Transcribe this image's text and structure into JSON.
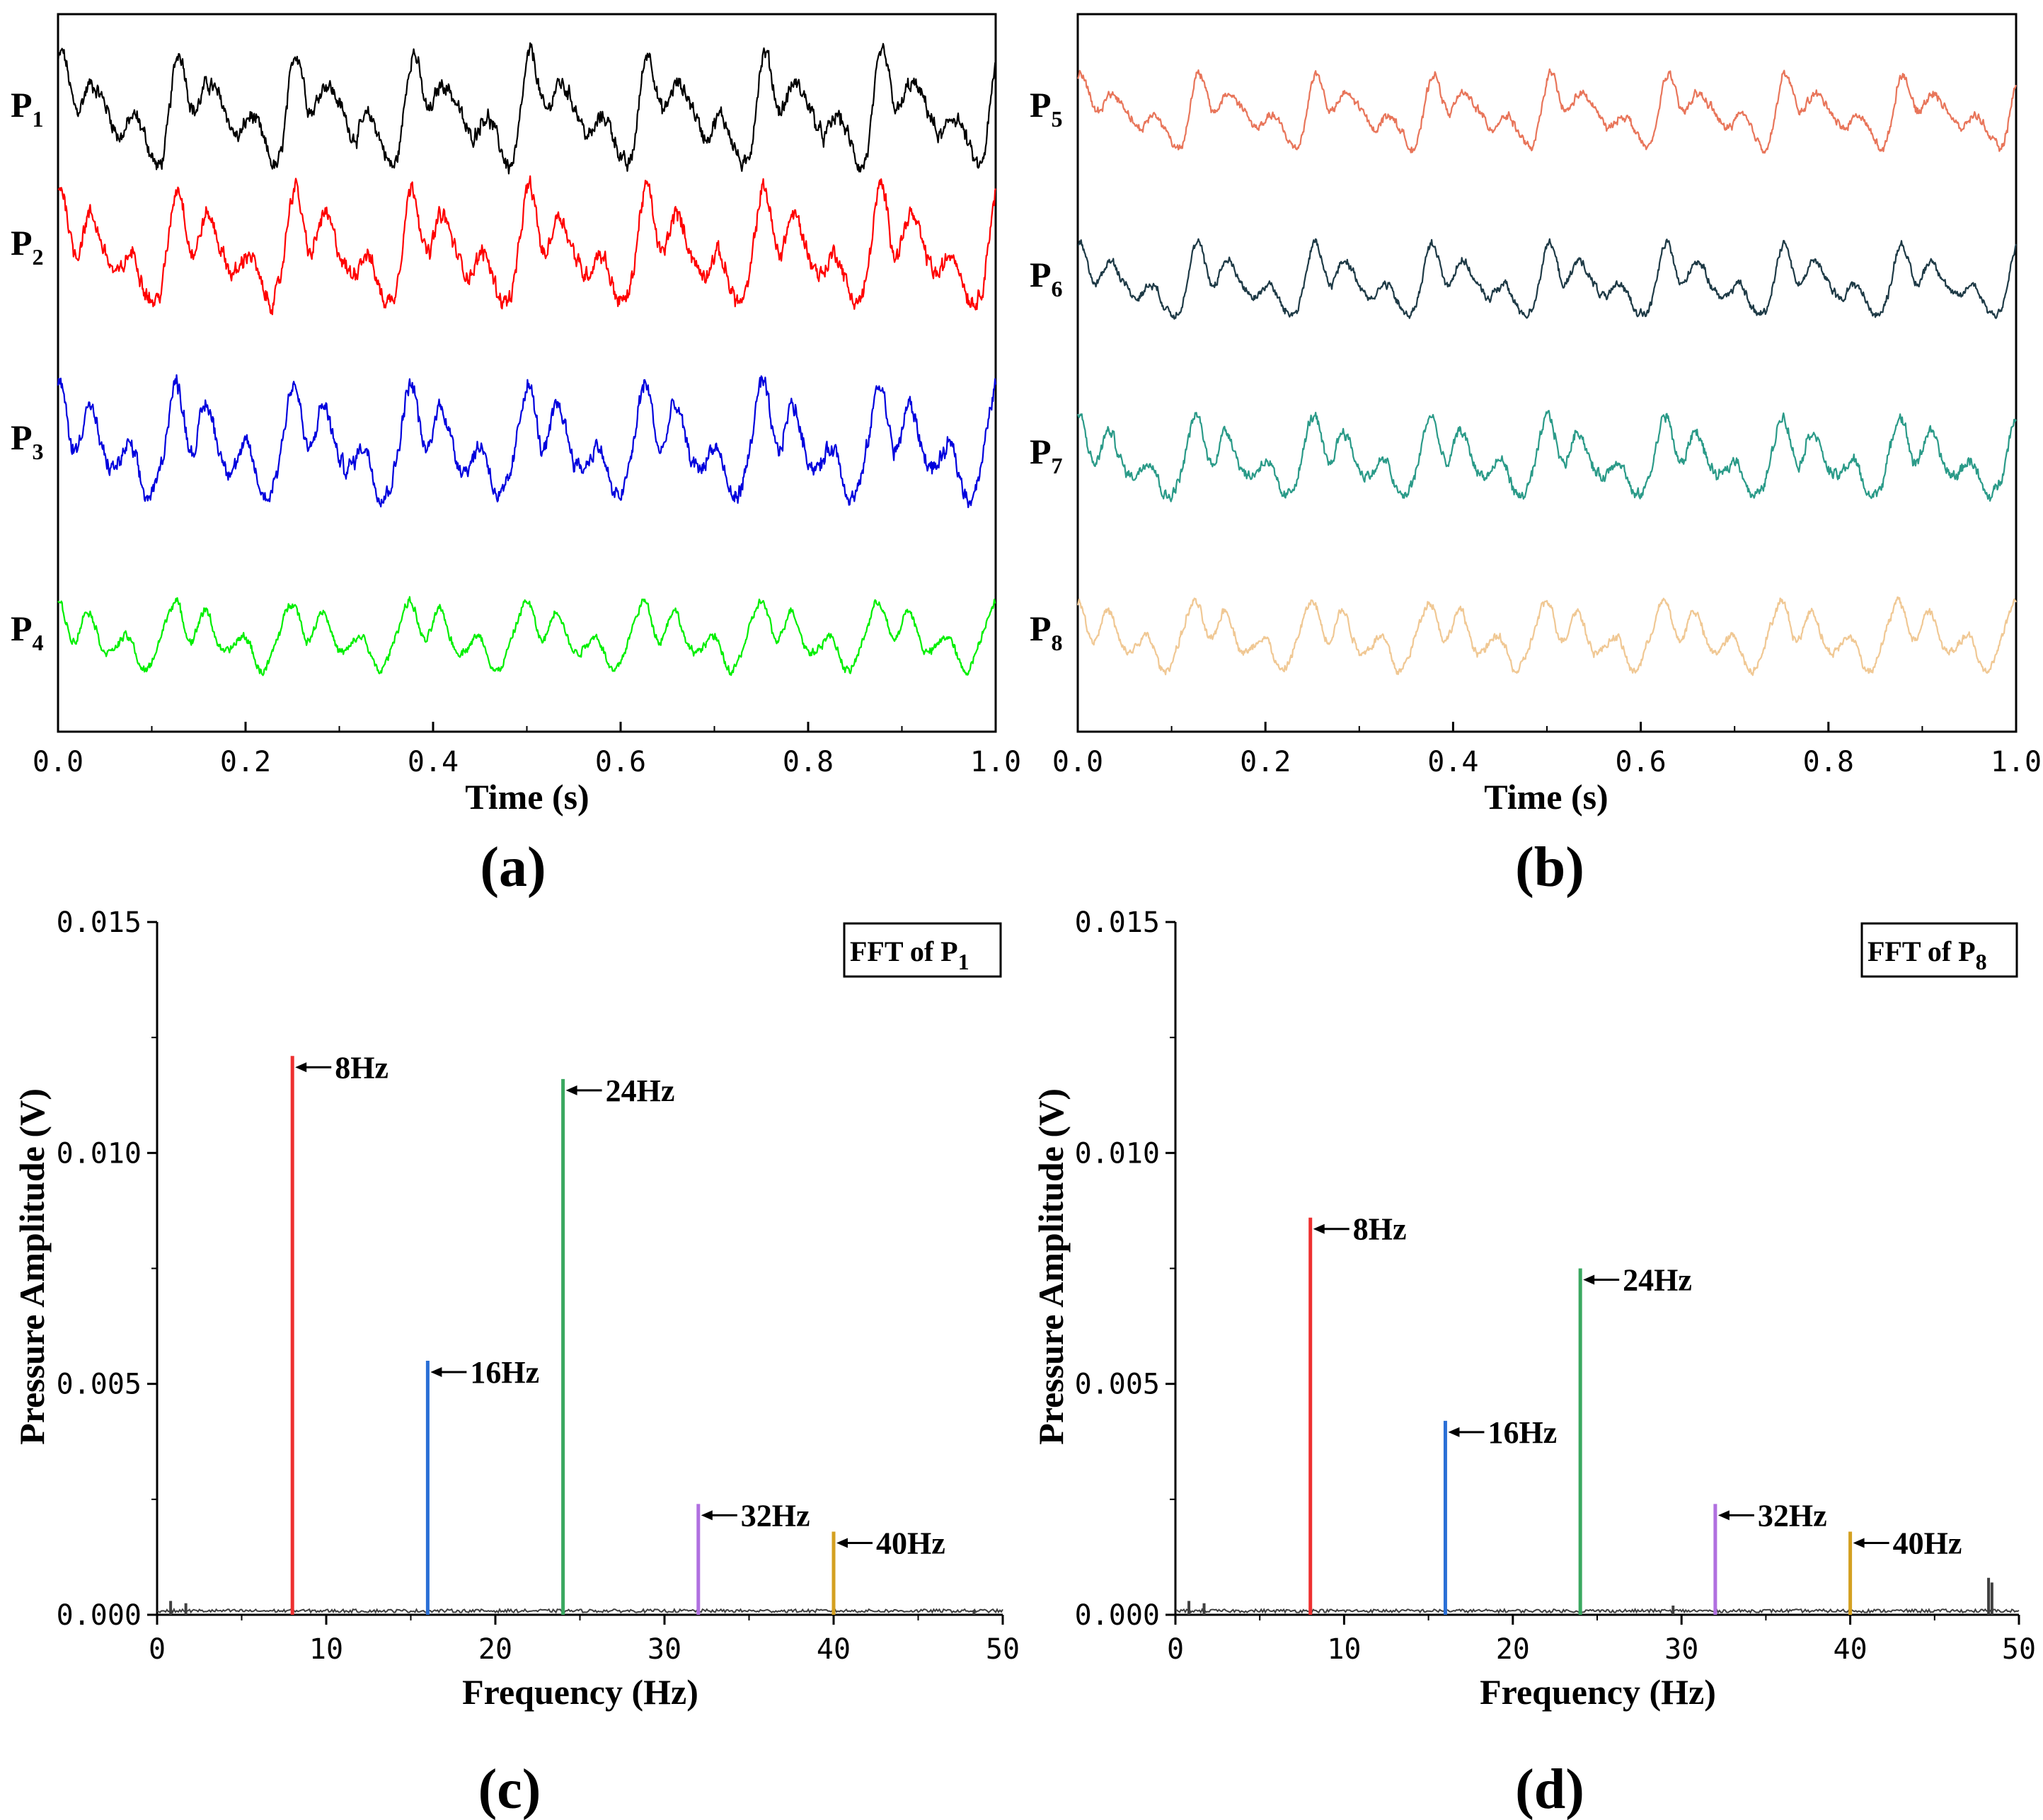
{
  "chart_data": [
    {
      "id": "a",
      "type": "line",
      "panel_label": "(a)",
      "xlabel": "Time (s)",
      "xlim": [
        0,
        1.0
      ],
      "xticks": [
        "0.0",
        "0.2",
        "0.4",
        "0.6",
        "0.8",
        "1.0"
      ],
      "series": [
        {
          "name": "P1",
          "label_main": "P",
          "label_sub": "1",
          "color": "#000000",
          "amplitude": 1.0,
          "fundamental_hz": 8,
          "noise": 0.9
        },
        {
          "name": "P2",
          "label_main": "P",
          "label_sub": "2",
          "color": "#ff0000",
          "amplitude": 1.05,
          "fundamental_hz": 8,
          "noise": 0.9
        },
        {
          "name": "P3",
          "label_main": "P",
          "label_sub": "3",
          "color": "#0000dd",
          "amplitude": 1.05,
          "fundamental_hz": 8,
          "noise": 0.9
        },
        {
          "name": "P4",
          "label_main": "P",
          "label_sub": "4",
          "color": "#00ee00",
          "amplitude": 0.65,
          "fundamental_hz": 8,
          "noise": 0.7
        }
      ]
    },
    {
      "id": "b",
      "type": "line",
      "panel_label": "(b)",
      "xlabel": "Time (s)",
      "xlim": [
        0,
        1.0
      ],
      "xticks": [
        "0.0",
        "0.2",
        "0.4",
        "0.6",
        "0.8",
        "1.0"
      ],
      "series": [
        {
          "name": "P5",
          "label_main": "P",
          "label_sub": "5",
          "color": "#e8755a",
          "amplitude": 0.65,
          "fundamental_hz": 8,
          "noise": 0.7
        },
        {
          "name": "P6",
          "label_main": "P",
          "label_sub": "6",
          "color": "#1e3a46",
          "amplitude": 0.65,
          "fundamental_hz": 8,
          "noise": 0.7
        },
        {
          "name": "P7",
          "label_main": "P",
          "label_sub": "7",
          "color": "#2a9a88",
          "amplitude": 0.75,
          "fundamental_hz": 8,
          "noise": 0.8
        },
        {
          "name": "P8",
          "label_main": "P",
          "label_sub": "8",
          "color": "#f0c894",
          "amplitude": 0.65,
          "fundamental_hz": 8,
          "noise": 0.7
        }
      ]
    },
    {
      "id": "c",
      "type": "bar",
      "panel_label": "(c)",
      "title_main": "FFT of P",
      "title_sub": "1",
      "xlabel": "Frequency (Hz)",
      "ylabel": "Pressure Amplitude (V)",
      "xlim": [
        0,
        50
      ],
      "ylim": [
        0,
        0.015
      ],
      "xticks": [
        "0",
        "10",
        "20",
        "30",
        "40",
        "50"
      ],
      "yticks": [
        "0.000",
        "0.005",
        "0.010",
        "0.015"
      ],
      "ytick_values": [
        0,
        0.005,
        0.01,
        0.015
      ],
      "peaks": [
        {
          "freq": 8,
          "value": 0.0121,
          "label": "8Hz",
          "color": "#ee3030"
        },
        {
          "freq": 16,
          "value": 0.0055,
          "label": "16Hz",
          "color": "#2a6fd6"
        },
        {
          "freq": 24,
          "value": 0.0116,
          "label": "24Hz",
          "color": "#3aa860"
        },
        {
          "freq": 32,
          "value": 0.0024,
          "label": "32Hz",
          "color": "#b070e0"
        },
        {
          "freq": 40,
          "value": 0.0018,
          "label": "40Hz",
          "color": "#d4a020"
        }
      ],
      "noise_bumps": [
        {
          "freq": 0.8,
          "value": 0.0003
        },
        {
          "freq": 1.7,
          "value": 0.00025
        },
        {
          "freq": 48.3,
          "value": 0.0001
        }
      ],
      "noise_color": "#404040"
    },
    {
      "id": "d",
      "type": "bar",
      "panel_label": "(d)",
      "title_main": "FFT of P",
      "title_sub": "8",
      "xlabel": "Frequency (Hz)",
      "ylabel": "Pressure Amplitude (V)",
      "xlim": [
        0,
        50
      ],
      "ylim": [
        0,
        0.015
      ],
      "xticks": [
        "0",
        "10",
        "20",
        "30",
        "40",
        "50"
      ],
      "yticks": [
        "0.000",
        "0.005",
        "0.010",
        "0.015"
      ],
      "ytick_values": [
        0,
        0.005,
        0.01,
        0.015
      ],
      "peaks": [
        {
          "freq": 8,
          "value": 0.0086,
          "label": "8Hz",
          "color": "#ee3030"
        },
        {
          "freq": 16,
          "value": 0.0042,
          "label": "16Hz",
          "color": "#2a6fd6"
        },
        {
          "freq": 24,
          "value": 0.0075,
          "label": "24Hz",
          "color": "#3aa860"
        },
        {
          "freq": 32,
          "value": 0.0024,
          "label": "32Hz",
          "color": "#b070e0"
        },
        {
          "freq": 40,
          "value": 0.0018,
          "label": "40Hz",
          "color": "#d4a020"
        }
      ],
      "noise_bumps": [
        {
          "freq": 0.8,
          "value": 0.0003
        },
        {
          "freq": 1.7,
          "value": 0.00025
        },
        {
          "freq": 29.5,
          "value": 0.0002
        },
        {
          "freq": 48.2,
          "value": 0.0008
        },
        {
          "freq": 48.4,
          "value": 0.0007
        }
      ],
      "noise_color": "#404040"
    }
  ]
}
